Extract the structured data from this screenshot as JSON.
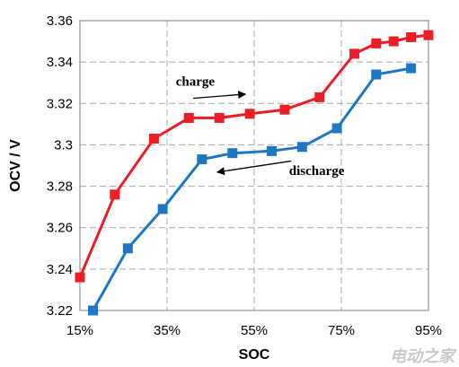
{
  "chart_data": {
    "type": "line",
    "title": "",
    "xlabel": "SOC",
    "ylabel": "OCV / V",
    "xlim": [
      15,
      95
    ],
    "ylim": [
      3.22,
      3.36
    ],
    "x_ticks": [
      15,
      35,
      55,
      75,
      95
    ],
    "x_tick_labels": [
      "15%",
      "35%",
      "55%",
      "75%",
      "95%"
    ],
    "y_ticks": [
      3.22,
      3.24,
      3.26,
      3.28,
      3.3,
      3.32,
      3.34,
      3.36
    ],
    "y_tick_labels": [
      "3.22",
      "3.24",
      "3.26",
      "3.28",
      "3.3",
      "3.32",
      "3.34",
      "3.36"
    ],
    "grid": true,
    "series": [
      {
        "name": "charge",
        "color": "#ee1c25",
        "marker": "square",
        "x": [
          15,
          23,
          32,
          40,
          47,
          54,
          62,
          70,
          78,
          83,
          87,
          91,
          95
        ],
        "y": [
          3.236,
          3.276,
          3.303,
          3.313,
          3.313,
          3.315,
          3.317,
          3.323,
          3.344,
          3.349,
          3.35,
          3.352,
          3.353
        ]
      },
      {
        "name": "discharge",
        "color": "#1f77c4",
        "marker": "square",
        "x": [
          18,
          26,
          34,
          43,
          50,
          59,
          66,
          74,
          83,
          91
        ],
        "y": [
          3.22,
          3.25,
          3.269,
          3.293,
          3.296,
          3.297,
          3.299,
          3.308,
          3.334,
          3.337
        ]
      }
    ],
    "annotations": [
      {
        "text": "charge",
        "x": 37,
        "y": 3.3285,
        "arrow_from": [
          41,
          3.3225
        ],
        "arrow_to": [
          53,
          3.3245
        ]
      },
      {
        "text": "discharge",
        "x": 63,
        "y": 3.2855,
        "arrow_from": [
          63.5,
          3.2922
        ],
        "arrow_to": [
          46.5,
          3.2868
        ]
      }
    ]
  },
  "watermark": "电动之家"
}
